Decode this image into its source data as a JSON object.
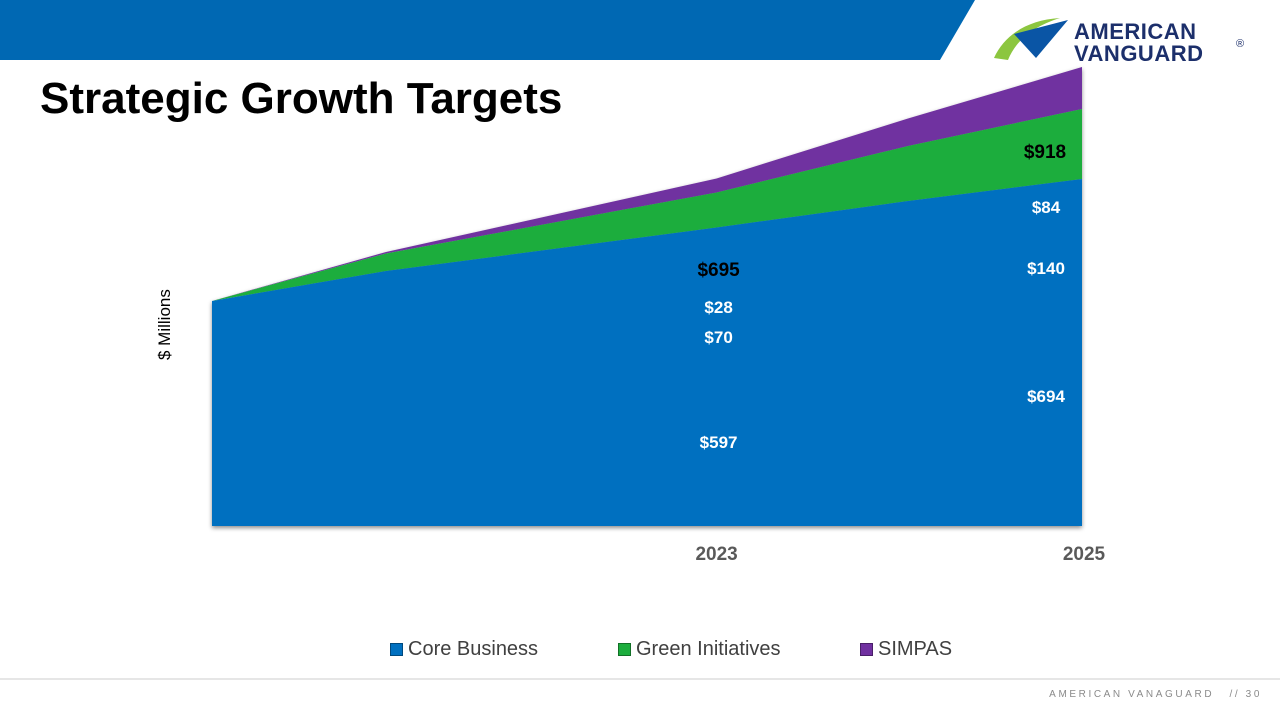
{
  "slide": {
    "title": "Strategic Growth Targets",
    "footer_company": "AMERICAN VANAGUARD",
    "footer_page": "// 30"
  },
  "logo": {
    "line1": "AMERICAN",
    "line2": "VANGUARD",
    "registered": "®",
    "colors": {
      "green": "#8cc63f",
      "blue": "#0a55a5",
      "navy": "#1c2f6b"
    }
  },
  "colors": {
    "header_blue": "#0068b3",
    "core": "#0070c0",
    "green": "#1cad3d",
    "simpas": "#7030a0"
  },
  "chart_data": {
    "type": "area",
    "stacked": true,
    "title": "",
    "xlabel": "",
    "ylabel": "$ Millions",
    "x_labels": [
      "2023",
      "2025"
    ],
    "series": [
      {
        "name": "Core Business",
        "color": "#0070c0",
        "value_labels": [
          "$597",
          "$694"
        ]
      },
      {
        "name": "Green Initiatives",
        "color": "#1cad3d",
        "value_labels": [
          "$70",
          "$140"
        ]
      },
      {
        "name": "SIMPAS",
        "color": "#7030a0",
        "value_labels": [
          "$28",
          "$84"
        ]
      }
    ],
    "totals": [
      "$695",
      "$918"
    ],
    "points": [
      {
        "core": 450,
        "green": 0,
        "simpas": 0
      },
      {
        "core": 510,
        "green": 35,
        "simpas": 3
      },
      {
        "core": 597,
        "green": 70,
        "simpas": 28
      },
      {
        "core": 650,
        "green": 110,
        "simpas": 55
      },
      {
        "core": 694,
        "green": 140,
        "simpas": 84
      }
    ],
    "x_positions": [
      0,
      0.2,
      0.58,
      0.8,
      1.0
    ],
    "grid": false,
    "legend_position": "bottom"
  }
}
